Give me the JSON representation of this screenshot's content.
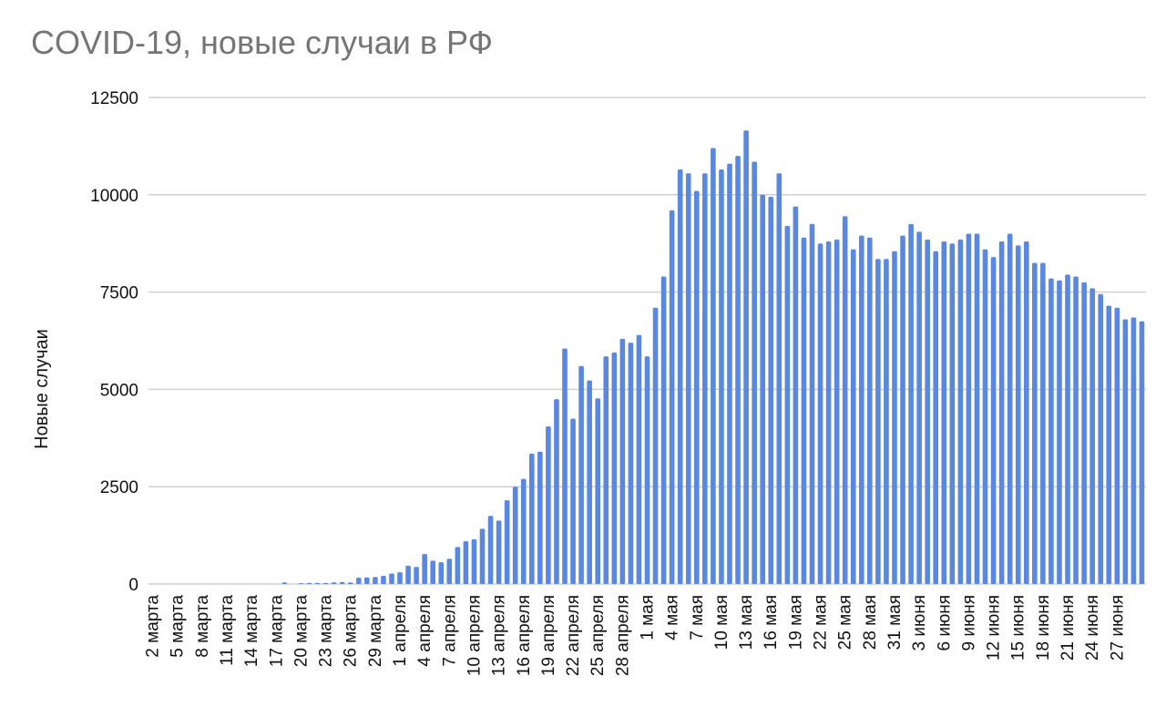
{
  "chart_data": {
    "type": "bar",
    "title": "COVID-19, новые случаи в РФ",
    "xlabel": "",
    "ylabel": "Новые случаи",
    "ylim": [
      0,
      12500
    ],
    "yticks": [
      0,
      2500,
      5000,
      7500,
      10000,
      12500
    ],
    "grid": true,
    "legend": "none",
    "bar_color": "#5a88e0",
    "x_tick_labels": [
      "2 марта",
      "5 марта",
      "8 марта",
      "11 марта",
      "14 марта",
      "17 марта",
      "20 марта",
      "23 марта",
      "26 марта",
      "29 марта",
      "1 апреля",
      "4 апреля",
      "7 апреля",
      "10 апреля",
      "13 апреля",
      "16 апреля",
      "19 апреля",
      "22 апреля",
      "25 апреля",
      "28 апреля",
      "1 мая",
      "4 мая",
      "7 мая",
      "10 мая",
      "13 мая",
      "16 мая",
      "19 мая",
      "22 мая",
      "25 мая",
      "28 мая",
      "31 мая",
      "3 июня",
      "6 июня",
      "9 июня",
      "12 июня",
      "15 июня",
      "18 июня",
      "21 июня",
      "24 июня",
      "27 июня"
    ],
    "series": [
      {
        "values": [
          0,
          0,
          0,
          0,
          0,
          0,
          0,
          0,
          0,
          0,
          0,
          0,
          0,
          0,
          0,
          0,
          40,
          0,
          20,
          30,
          30,
          30,
          40,
          50,
          40,
          160,
          170,
          180,
          210,
          270,
          300,
          470,
          440,
          770,
          600,
          560,
          650,
          950,
          1100,
          1150,
          1420,
          1750,
          1630,
          2150,
          2500,
          2700,
          3350,
          3400,
          4050,
          4750,
          6050,
          4250,
          5600,
          5230,
          4770,
          5850,
          5950,
          6300,
          6200,
          6400,
          5850,
          7100,
          7900,
          9600,
          10650,
          10550,
          10100,
          10550,
          11200,
          10650,
          10800,
          11000,
          11650,
          10850,
          10000,
          9950,
          10550,
          9200,
          9700,
          8900,
          9250,
          8750,
          8800,
          8850,
          9450,
          8600,
          8950,
          8900,
          8350,
          8350,
          8550,
          8950,
          9250,
          9050,
          8850,
          8550,
          8800,
          8750,
          8850,
          9000,
          9000,
          8600,
          8400,
          8800,
          9000,
          8700,
          8800,
          8250,
          8250,
          7850,
          7800,
          7950,
          7900,
          7750,
          7600,
          7450,
          7150,
          7100,
          6800,
          6850,
          6750
        ]
      }
    ]
  }
}
